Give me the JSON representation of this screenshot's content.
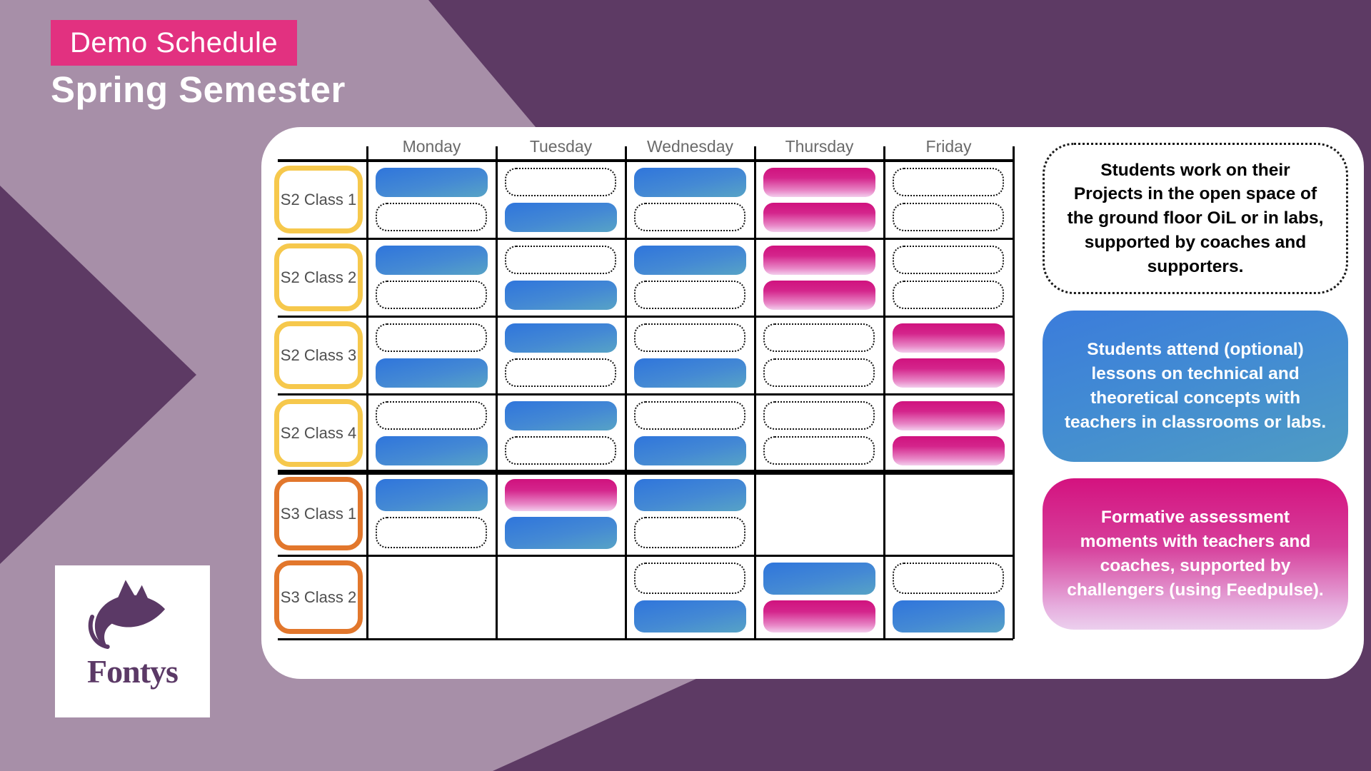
{
  "header": {
    "badge": "Demo Schedule",
    "title": "Spring Semester"
  },
  "schedule": {
    "days": [
      "Monday",
      "Tuesday",
      "Wednesday",
      "Thursday",
      "Friday"
    ],
    "rows": [
      {
        "label": "S2 Class 1",
        "group": "s2",
        "cells": [
          [
            "lesson",
            "project"
          ],
          [
            "project",
            "lesson"
          ],
          [
            "lesson",
            "project"
          ],
          [
            "assessment",
            "assessment"
          ],
          [
            "project",
            "project"
          ]
        ]
      },
      {
        "label": "S2 Class 2",
        "group": "s2",
        "cells": [
          [
            "lesson",
            "project"
          ],
          [
            "project",
            "lesson"
          ],
          [
            "lesson",
            "project"
          ],
          [
            "assessment",
            "assessment"
          ],
          [
            "project",
            "project"
          ]
        ]
      },
      {
        "label": "S2 Class 3",
        "group": "s2",
        "cells": [
          [
            "project",
            "lesson"
          ],
          [
            "lesson",
            "project"
          ],
          [
            "project",
            "lesson"
          ],
          [
            "project",
            "project"
          ],
          [
            "assessment",
            "assessment"
          ]
        ]
      },
      {
        "label": "S2 Class 4",
        "group": "s2",
        "cells": [
          [
            "project",
            "lesson"
          ],
          [
            "lesson",
            "project"
          ],
          [
            "project",
            "lesson"
          ],
          [
            "project",
            "project"
          ],
          [
            "assessment",
            "assessment"
          ]
        ]
      },
      {
        "label": "S3 Class 1",
        "group": "s3",
        "cells": [
          [
            "lesson",
            "project"
          ],
          [
            "assessment",
            "lesson"
          ],
          [
            "lesson",
            "project"
          ],
          [
            "empty",
            "empty"
          ],
          [
            "empty",
            "empty"
          ]
        ]
      },
      {
        "label": "S3 Class 2",
        "group": "s3",
        "cells": [
          [
            "empty",
            "empty"
          ],
          [
            "empty",
            "empty"
          ],
          [
            "project",
            "lesson"
          ],
          [
            "lesson",
            "assessment"
          ],
          [
            "project",
            "lesson"
          ]
        ]
      }
    ]
  },
  "legend": [
    {
      "type": "project",
      "text": "Students work on their Projects in the open space of the ground floor OiL or in labs, supported by coaches and supporters."
    },
    {
      "type": "lesson",
      "text": "Students attend (optional) lessons on technical and theoretical concepts  with teachers in classrooms or labs."
    },
    {
      "type": "assessment",
      "text": "Formative assessment moments with teachers and coaches, supported by challengers (using Feedpulse)."
    }
  ],
  "logo": {
    "text": "Fontys"
  },
  "colors": {
    "background_dark_purple": "#5d3a64",
    "background_mauve": "#a78fa8",
    "accent_pink": "#e23180",
    "lesson_blue_top": "#3177db",
    "lesson_blue_bottom": "#57a3c6",
    "assessment_pink_top": "#d0127e",
    "assessment_pink_bottom": "#f3cdec",
    "s2_border_yellow": "#f6c84c",
    "s3_border_orange": "#e2772c",
    "logo_purple": "#5b3966"
  }
}
